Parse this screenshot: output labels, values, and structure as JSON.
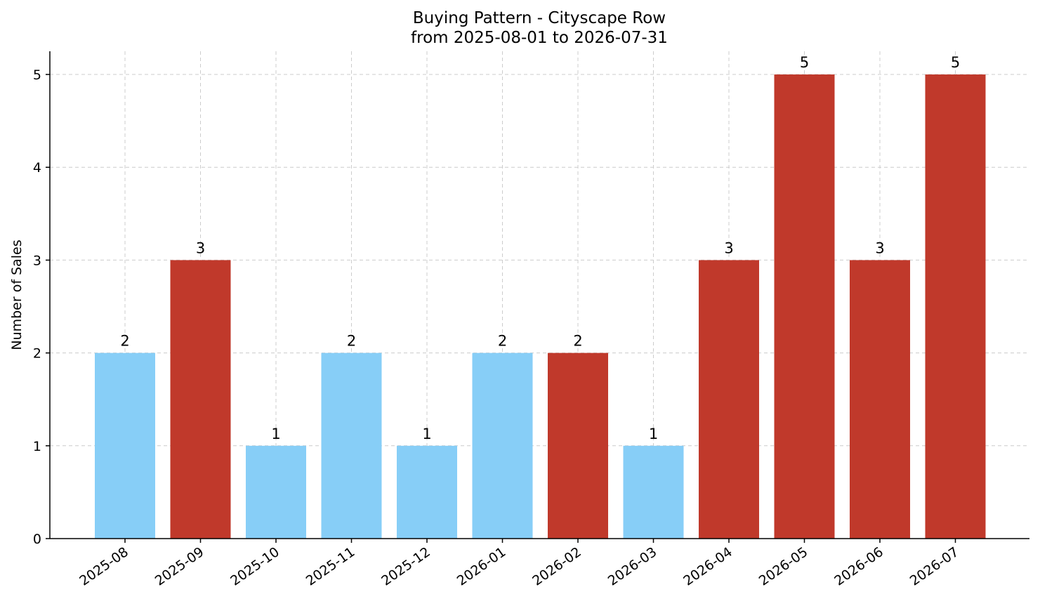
{
  "chart_data": {
    "type": "bar",
    "title_line1": "Buying Pattern - Cityscape Row",
    "title_line2": "from 2025-08-01 to 2026-07-31",
    "xlabel": "",
    "ylabel": "Number of Sales",
    "categories": [
      "2025-08",
      "2025-09",
      "2025-10",
      "2025-11",
      "2025-12",
      "2026-01",
      "2026-02",
      "2026-03",
      "2026-04",
      "2026-05",
      "2026-06",
      "2026-07"
    ],
    "values": [
      2,
      3,
      1,
      2,
      1,
      2,
      2,
      1,
      3,
      5,
      3,
      5
    ],
    "bar_colors": [
      "#87CEF7",
      "#C0392B",
      "#87CEF7",
      "#87CEF7",
      "#87CEF7",
      "#87CEF7",
      "#C0392B",
      "#87CEF7",
      "#C0392B",
      "#C0392B",
      "#C0392B",
      "#C0392B"
    ],
    "ylim": [
      0,
      5.25
    ],
    "yticks": [
      "0",
      "1",
      "2",
      "3",
      "4",
      "5"
    ],
    "grid": true,
    "legend": "none"
  }
}
